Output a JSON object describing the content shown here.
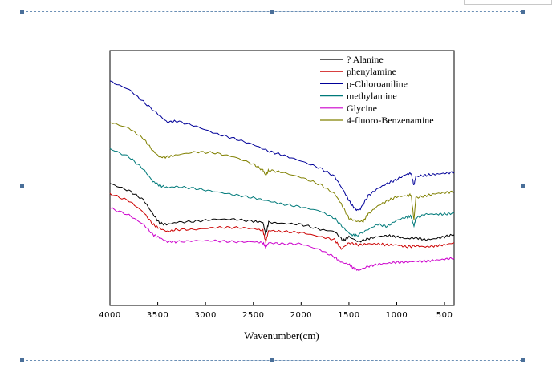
{
  "chart_data": {
    "type": "line",
    "title": "",
    "xlabel": "Wavenumber(cm)",
    "ylabel": "",
    "xlim": [
      4000,
      400
    ],
    "ylim": [
      0,
      100
    ],
    "x_ticks": [
      4000,
      3500,
      3000,
      2500,
      2000,
      1500,
      1000,
      500
    ],
    "x_tick_labels": [
      "4000",
      "3500",
      "3000",
      "2500",
      "2000",
      "1500",
      "1000",
      "500"
    ],
    "grid": false,
    "legend_position": "top-right",
    "series": [
      {
        "name": "?  Alanine",
        "color": "#000000",
        "points": [
          [
            4000,
            42
          ],
          [
            3800,
            38.5
          ],
          [
            3650,
            34
          ],
          [
            3550,
            27
          ],
          [
            3480,
            22.5
          ],
          [
            3400,
            22
          ],
          [
            3300,
            23
          ],
          [
            3100,
            23.5
          ],
          [
            2900,
            24.5
          ],
          [
            2700,
            24.5
          ],
          [
            2500,
            23.5
          ],
          [
            2400,
            23
          ],
          [
            2370,
            17
          ],
          [
            2340,
            23
          ],
          [
            2200,
            22.5
          ],
          [
            2000,
            22
          ],
          [
            1800,
            19.5
          ],
          [
            1650,
            18.5
          ],
          [
            1560,
            14
          ],
          [
            1500,
            16
          ],
          [
            1400,
            13.5
          ],
          [
            1300,
            15
          ],
          [
            1200,
            16
          ],
          [
            1100,
            16.5
          ],
          [
            1000,
            16
          ],
          [
            900,
            15
          ],
          [
            800,
            15.5
          ],
          [
            700,
            14.5
          ],
          [
            600,
            15
          ],
          [
            500,
            16
          ],
          [
            400,
            17
          ]
        ]
      },
      {
        "name": "phenylamine",
        "color": "#cc0000",
        "points": [
          [
            4000,
            37
          ],
          [
            3800,
            33.5
          ],
          [
            3650,
            28
          ],
          [
            3550,
            22
          ],
          [
            3480,
            20
          ],
          [
            3400,
            18.5
          ],
          [
            3300,
            19.5
          ],
          [
            3100,
            19.5
          ],
          [
            2900,
            20.5
          ],
          [
            2700,
            20.5
          ],
          [
            2500,
            20
          ],
          [
            2400,
            19
          ],
          [
            2370,
            13.5
          ],
          [
            2340,
            19
          ],
          [
            2200,
            18.5
          ],
          [
            2000,
            18
          ],
          [
            1800,
            16
          ],
          [
            1650,
            14.5
          ],
          [
            1580,
            10
          ],
          [
            1500,
            13
          ],
          [
            1400,
            12
          ],
          [
            1300,
            12.5
          ],
          [
            1200,
            12.5
          ],
          [
            1100,
            12
          ],
          [
            1000,
            12
          ],
          [
            900,
            11
          ],
          [
            800,
            11.5
          ],
          [
            700,
            11
          ],
          [
            600,
            11.5
          ],
          [
            500,
            12
          ],
          [
            400,
            13
          ]
        ]
      },
      {
        "name": "p-Chloroaniline",
        "color": "#000099",
        "points": [
          [
            4000,
            92
          ],
          [
            3800,
            88
          ],
          [
            3650,
            82
          ],
          [
            3500,
            76
          ],
          [
            3400,
            72
          ],
          [
            3300,
            72.5
          ],
          [
            3100,
            70
          ],
          [
            2900,
            66.5
          ],
          [
            2700,
            64
          ],
          [
            2500,
            61
          ],
          [
            2350,
            58
          ],
          [
            2200,
            56
          ],
          [
            2000,
            53
          ],
          [
            1800,
            49.5
          ],
          [
            1650,
            45.5
          ],
          [
            1550,
            38
          ],
          [
            1480,
            32
          ],
          [
            1420,
            29
          ],
          [
            1380,
            29.5
          ],
          [
            1300,
            36
          ],
          [
            1200,
            39.5
          ],
          [
            1100,
            42
          ],
          [
            1000,
            44
          ],
          [
            900,
            46.5
          ],
          [
            850,
            47
          ],
          [
            820,
            41
          ],
          [
            800,
            45.5
          ],
          [
            700,
            46
          ],
          [
            600,
            46.5
          ],
          [
            500,
            47
          ],
          [
            400,
            47.5
          ]
        ]
      },
      {
        "name": "methylamine",
        "color": "#007a7a",
        "points": [
          [
            4000,
            59
          ],
          [
            3800,
            55
          ],
          [
            3650,
            49
          ],
          [
            3550,
            43
          ],
          [
            3480,
            41
          ],
          [
            3400,
            40
          ],
          [
            3300,
            40.5
          ],
          [
            3100,
            39.5
          ],
          [
            2900,
            38
          ],
          [
            2700,
            36.5
          ],
          [
            2500,
            35
          ],
          [
            2350,
            33.5
          ],
          [
            2200,
            32
          ],
          [
            2000,
            30.5
          ],
          [
            1800,
            28.5
          ],
          [
            1650,
            25
          ],
          [
            1550,
            20
          ],
          [
            1480,
            17
          ],
          [
            1420,
            16.5
          ],
          [
            1300,
            19.5
          ],
          [
            1200,
            22
          ],
          [
            1100,
            21
          ],
          [
            1000,
            24
          ],
          [
            900,
            25.5
          ],
          [
            850,
            26
          ],
          [
            820,
            21
          ],
          [
            800,
            25
          ],
          [
            700,
            27
          ],
          [
            600,
            27
          ],
          [
            500,
            27
          ],
          [
            400,
            27.5
          ]
        ]
      },
      {
        "name": "Glycine",
        "color": "#cc00cc",
        "points": [
          [
            4000,
            30
          ],
          [
            3800,
            26.5
          ],
          [
            3650,
            22
          ],
          [
            3550,
            17
          ],
          [
            3480,
            15.5
          ],
          [
            3400,
            13.5
          ],
          [
            3300,
            13.5
          ],
          [
            3100,
            14
          ],
          [
            2900,
            14
          ],
          [
            2700,
            13.5
          ],
          [
            2500,
            13.5
          ],
          [
            2400,
            13
          ],
          [
            2370,
            11
          ],
          [
            2340,
            13
          ],
          [
            2200,
            12.5
          ],
          [
            2000,
            12.5
          ],
          [
            1800,
            9.5
          ],
          [
            1650,
            6
          ],
          [
            1580,
            3.5
          ],
          [
            1500,
            2.5
          ],
          [
            1450,
            0.5
          ],
          [
            1400,
            -0.5
          ],
          [
            1300,
            1.5
          ],
          [
            1200,
            2.5
          ],
          [
            1100,
            3
          ],
          [
            1000,
            3.5
          ],
          [
            900,
            3.5
          ],
          [
            800,
            4
          ],
          [
            700,
            4
          ],
          [
            600,
            4.5
          ],
          [
            500,
            5
          ],
          [
            400,
            5.5
          ]
        ]
      },
      {
        "name": "4-fluoro-Benzenamine",
        "color": "#808000",
        "points": [
          [
            4000,
            72
          ],
          [
            3800,
            69
          ],
          [
            3650,
            64
          ],
          [
            3550,
            58
          ],
          [
            3480,
            55
          ],
          [
            3400,
            55
          ],
          [
            3300,
            56
          ],
          [
            3100,
            57.5
          ],
          [
            2900,
            57
          ],
          [
            2700,
            55
          ],
          [
            2500,
            51.5
          ],
          [
            2400,
            48.5
          ],
          [
            2370,
            46
          ],
          [
            2340,
            48.5
          ],
          [
            2200,
            47.5
          ],
          [
            2000,
            45
          ],
          [
            1800,
            41.5
          ],
          [
            1650,
            37
          ],
          [
            1580,
            32
          ],
          [
            1500,
            25
          ],
          [
            1420,
            23.5
          ],
          [
            1350,
            23.5
          ],
          [
            1300,
            27
          ],
          [
            1200,
            31
          ],
          [
            1100,
            33.5
          ],
          [
            1000,
            35.5
          ],
          [
            900,
            36
          ],
          [
            850,
            36.5
          ],
          [
            820,
            24
          ],
          [
            800,
            35
          ],
          [
            700,
            36
          ],
          [
            600,
            37
          ],
          [
            500,
            37.5
          ],
          [
            400,
            38
          ]
        ]
      }
    ]
  }
}
